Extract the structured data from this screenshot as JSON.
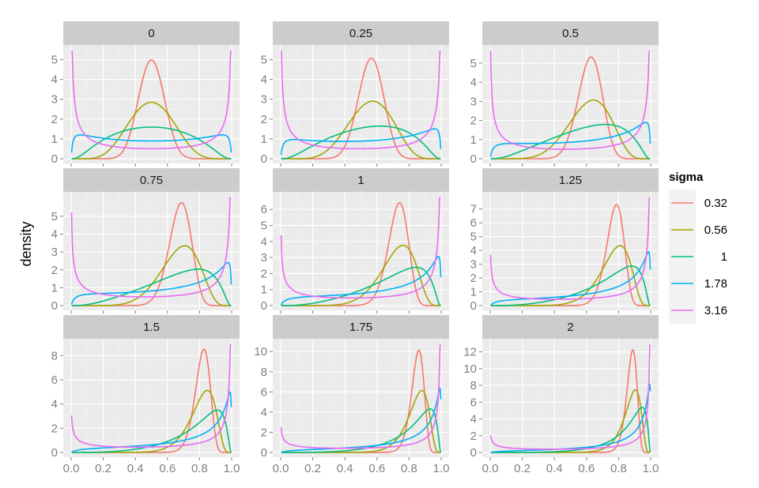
{
  "chart_data": {
    "type": "line",
    "title": "",
    "xlabel": "",
    "ylabel": "density",
    "xlim": [
      0,
      1
    ],
    "x_ticks": [
      0.0,
      0.2,
      0.4,
      0.6,
      0.8,
      1.0
    ],
    "x_tick_labels": [
      "0.0",
      "0.2",
      "0.4",
      "0.6",
      "0.8",
      "1.0"
    ],
    "grid": true,
    "legend_placement": "right",
    "legend": {
      "title": "sigma",
      "entries": [
        {
          "label": "0.32",
          "color": "#F8766D"
        },
        {
          "label": "0.56",
          "color": "#A3A500"
        },
        {
          "label": "1",
          "color": "#00BF7D"
        },
        {
          "label": "1.78",
          "color": "#00B0F6"
        },
        {
          "label": "3.16",
          "color": "#E76BF3"
        }
      ]
    },
    "curve_family": "logit-normal",
    "panels": [
      {
        "mu": 0,
        "label": "0",
        "ylim": [
          0,
          5.5
        ],
        "y_ticks": [
          0,
          1,
          2,
          3,
          4,
          5
        ]
      },
      {
        "mu": 0.25,
        "label": "0.25",
        "ylim": [
          0,
          5.5
        ],
        "y_ticks": [
          0,
          1,
          2,
          3,
          4,
          5
        ]
      },
      {
        "mu": 0.5,
        "label": "0.5",
        "ylim": [
          0,
          5.7
        ],
        "y_ticks": [
          0,
          1,
          2,
          3,
          4,
          5
        ]
      },
      {
        "mu": 0.75,
        "label": "0.75",
        "ylim": [
          0,
          6.1
        ],
        "y_ticks": [
          0,
          1,
          2,
          3,
          4,
          5
        ]
      },
      {
        "mu": 1,
        "label": "1",
        "ylim": [
          0,
          6.8
        ],
        "y_ticks": [
          0,
          1,
          2,
          3,
          4,
          5,
          6
        ]
      },
      {
        "mu": 1.25,
        "label": "1.25",
        "ylim": [
          0,
          7.9
        ],
        "y_ticks": [
          0,
          1,
          2,
          3,
          4,
          5,
          6,
          7
        ]
      },
      {
        "mu": 1.5,
        "label": "1.5",
        "ylim": [
          0,
          9.0
        ],
        "y_ticks": [
          0,
          2,
          4,
          6,
          8
        ]
      },
      {
        "mu": 1.75,
        "label": "1.75",
        "ylim": [
          0,
          10.8
        ],
        "y_ticks": [
          0,
          2,
          4,
          6,
          8,
          10
        ]
      },
      {
        "mu": 2,
        "label": "2",
        "ylim": [
          0,
          13.0
        ],
        "y_ticks": [
          0,
          2,
          4,
          6,
          8,
          10,
          12
        ]
      }
    ],
    "series": [
      {
        "name": "0.32",
        "sigma": 0.32
      },
      {
        "name": "0.56",
        "sigma": 0.56
      },
      {
        "name": "1",
        "sigma": 1.0
      },
      {
        "name": "1.78",
        "sigma": 1.78
      },
      {
        "name": "3.16",
        "sigma": 3.16
      }
    ]
  }
}
